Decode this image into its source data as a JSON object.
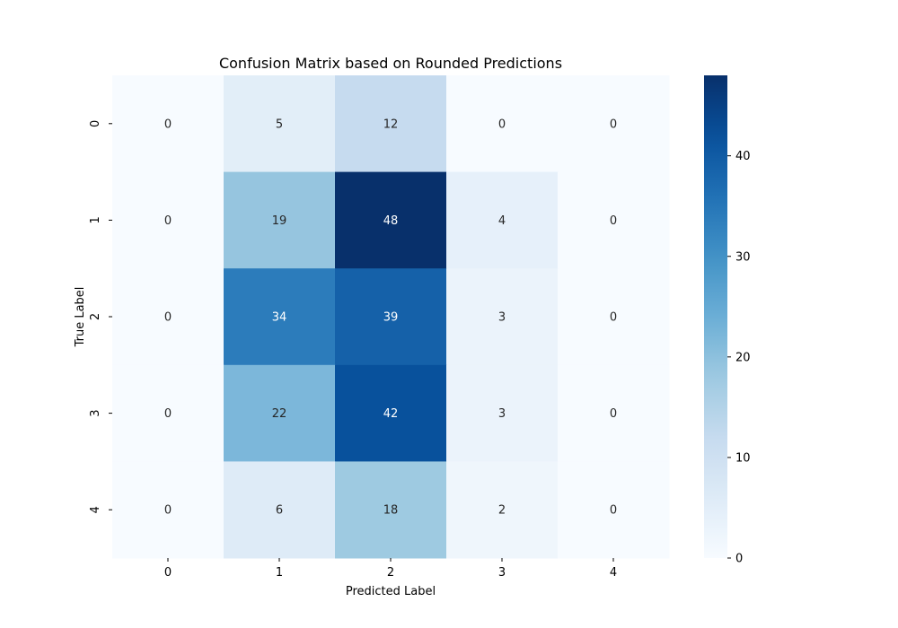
{
  "chart_data": {
    "type": "heatmap",
    "title": "Confusion Matrix based on Rounded Predictions",
    "xlabel": "Predicted Label",
    "ylabel": "True Label",
    "x_categories": [
      "0",
      "1",
      "2",
      "3",
      "4"
    ],
    "y_categories": [
      "0",
      "1",
      "2",
      "3",
      "4"
    ],
    "values": [
      [
        0,
        5,
        12,
        0,
        0
      ],
      [
        0,
        19,
        48,
        4,
        0
      ],
      [
        0,
        34,
        39,
        3,
        0
      ],
      [
        0,
        22,
        42,
        3,
        0
      ],
      [
        0,
        6,
        18,
        2,
        0
      ]
    ],
    "colormap": "Blues",
    "vmin": 0,
    "vmax": 48,
    "colorbar_ticks": [
      0,
      10,
      20,
      30,
      40
    ],
    "colorbar_tick_labels": [
      "0",
      "10",
      "20",
      "30",
      "40"
    ],
    "annotations": true
  }
}
